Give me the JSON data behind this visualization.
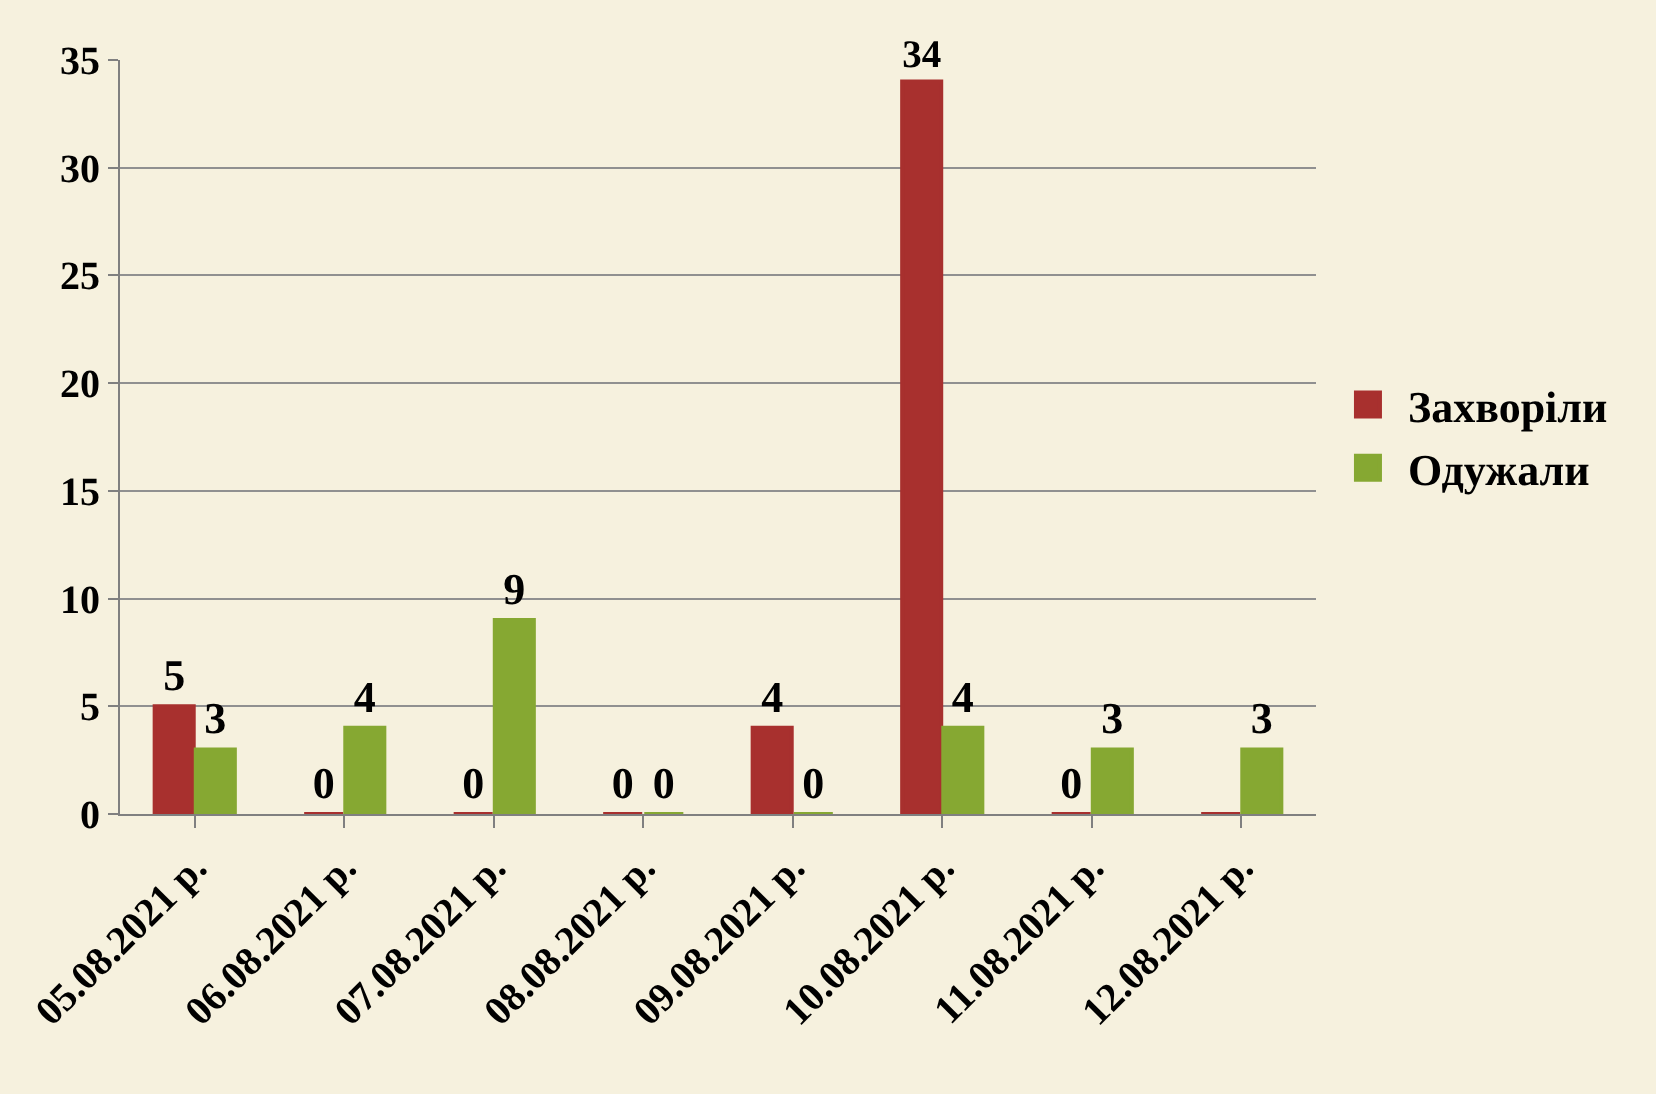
{
  "chart_data": {
    "type": "bar",
    "categories": [
      "05.08.2021 р.",
      "06.08.2021 р.",
      "07.08.2021 р.",
      "08.08.2021 р.",
      "09.08.2021 р.",
      "10.08.2021 р.",
      "11.08.2021 р.",
      "12.08.2021 р."
    ],
    "series": [
      {
        "name": "Захворіли",
        "color": "#a8302e",
        "values": [
          5,
          0,
          0,
          0,
          4,
          34,
          0,
          0
        ],
        "value_labels": [
          "5",
          "0",
          "0",
          "0",
          "4",
          "34",
          "0",
          null
        ]
      },
      {
        "name": "Одужали",
        "color": "#86a832",
        "values": [
          3,
          4,
          9,
          0,
          0,
          4,
          3,
          3
        ],
        "value_labels": [
          "3",
          "4",
          "9",
          "0",
          "0",
          "4",
          "3",
          "3"
        ]
      }
    ],
    "ylim": [
      0,
      35
    ],
    "yticks": [
      0,
      5,
      10,
      15,
      20,
      25,
      30,
      35
    ],
    "grid": "y",
    "legend": "right"
  }
}
